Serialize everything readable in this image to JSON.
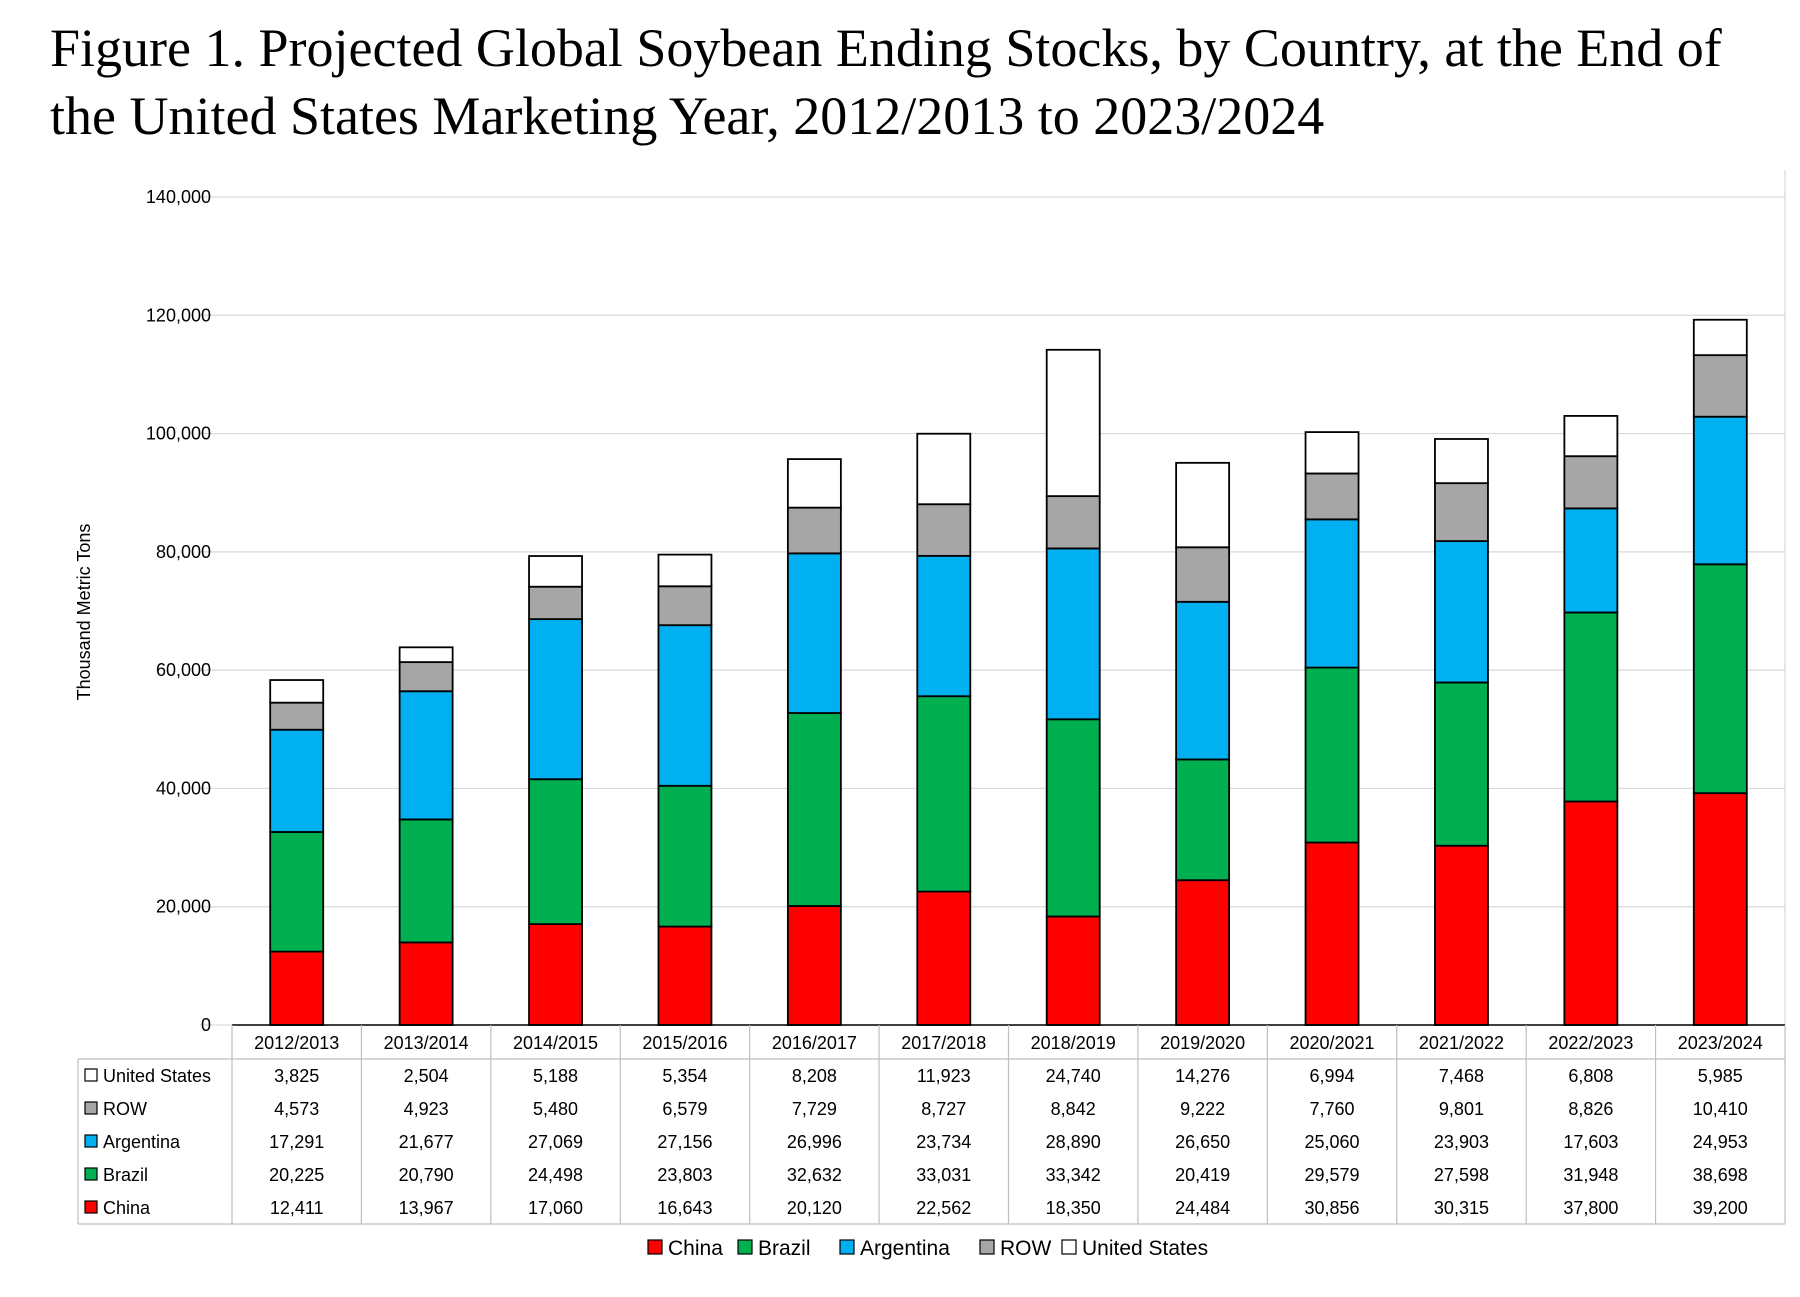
{
  "title": "Figure 1. Projected Global Soybean Ending Stocks, by Country, at the End of the United States Marketing Year, 2012/2013 to 2023/2024",
  "chart_data": {
    "type": "bar",
    "stacked": true,
    "title": "Figure 1. Projected Global Soybean Ending Stocks, by Country, at the End of the United States Marketing Year, 2012/2013 to 2023/2024",
    "xlabel": "",
    "ylabel": "Thousand Metric Tons",
    "ylim": [
      0,
      140000
    ],
    "yticks": [
      "0",
      "20,000",
      "40,000",
      "60,000",
      "80,000",
      "100,000",
      "120,000",
      "140,000"
    ],
    "grid": true,
    "legend_position": "bottom",
    "categories": [
      "2012/2013",
      "2013/2014",
      "2014/2015",
      "2015/2016",
      "2016/2017",
      "2017/2018",
      "2018/2019",
      "2019/2020",
      "2020/2021",
      "2021/2022",
      "2022/2023",
      "2023/2024"
    ],
    "series": [
      {
        "name": "China",
        "color": "#ff0000",
        "values": [
          12411,
          13967,
          17060,
          16643,
          20120,
          22562,
          18350,
          24484,
          30856,
          30315,
          37800,
          39200
        ],
        "labels": [
          "12,411",
          "13,967",
          "17,060",
          "16,643",
          "20,120",
          "22,562",
          "18,350",
          "24,484",
          "30,856",
          "30,315",
          "37,800",
          "39,200"
        ]
      },
      {
        "name": "Brazil",
        "color": "#00b050",
        "values": [
          20225,
          20790,
          24498,
          23803,
          32632,
          33031,
          33342,
          20419,
          29579,
          27598,
          31948,
          38698
        ],
        "labels": [
          "20,225",
          "20,790",
          "24,498",
          "23,803",
          "32,632",
          "33,031",
          "33,342",
          "20,419",
          "29,579",
          "27,598",
          "31,948",
          "38,698"
        ]
      },
      {
        "name": "Argentina",
        "color": "#00b0f0",
        "values": [
          17291,
          21677,
          27069,
          27156,
          26996,
          23734,
          28890,
          26650,
          25060,
          23903,
          17603,
          24953
        ],
        "labels": [
          "17,291",
          "21,677",
          "27,069",
          "27,156",
          "26,996",
          "23,734",
          "28,890",
          "26,650",
          "25,060",
          "23,903",
          "17,603",
          "24,953"
        ]
      },
      {
        "name": "ROW",
        "color": "#a6a6a6",
        "values": [
          4573,
          4923,
          5480,
          6579,
          7729,
          8727,
          8842,
          9222,
          7760,
          9801,
          8826,
          10410
        ],
        "labels": [
          "4,573",
          "4,923",
          "5,480",
          "6,579",
          "7,729",
          "8,727",
          "8,842",
          "9,222",
          "7,760",
          "9,801",
          "8,826",
          "10,410"
        ]
      },
      {
        "name": "United States",
        "color": "#ffffff",
        "values": [
          3825,
          2504,
          5188,
          5354,
          8208,
          11923,
          24740,
          14276,
          6994,
          7468,
          6808,
          5985
        ],
        "labels": [
          "3,825",
          "2,504",
          "5,188",
          "5,354",
          "8,208",
          "11,923",
          "24,740",
          "14,276",
          "6,994",
          "7,468",
          "6,808",
          "5,985"
        ]
      }
    ],
    "table_row_order": [
      "United States",
      "ROW",
      "Argentina",
      "Brazil",
      "China"
    ]
  }
}
